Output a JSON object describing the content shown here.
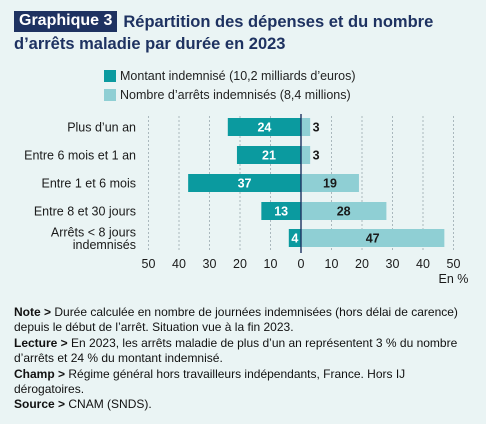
{
  "header": {
    "badge": "Graphique 3",
    "title_line1": "Répartition des dépenses et du nombre",
    "title_line2": "d’arrêts maladie par durée en 2023"
  },
  "colors": {
    "montant": "#0b9a9f",
    "nombre": "#8fcfd4",
    "title": "#1e3261",
    "background": "#eaf4f4"
  },
  "chart_data": {
    "type": "bar",
    "orientation": "horizontal",
    "diverging": true,
    "categories": [
      "Plus d’un an",
      "Entre 6 mois et 1 an",
      "Entre 1 et 6 mois",
      "Entre 8 et 30 jours",
      "Arrêts < 8 jours indemnisés"
    ],
    "category_lines": [
      [
        "Plus d’un an"
      ],
      [
        "Entre 6 mois et 1 an"
      ],
      [
        "Entre 1 et 6 mois"
      ],
      [
        "Entre 8 et 30 jours"
      ],
      [
        "Arrêts < 8 jours",
        "indemnisés"
      ]
    ],
    "series": [
      {
        "name": "Montant indemnisé (10,2 milliards d’euros)",
        "values": [
          24,
          21,
          37,
          13,
          4
        ],
        "side": "left",
        "color": "#0b9a9f"
      },
      {
        "name": "Nombre d’arrêts indemnisés (8,4 millions)",
        "values": [
          3,
          3,
          19,
          28,
          47
        ],
        "side": "right",
        "color": "#8fcfd4"
      }
    ],
    "x_ticks": [
      "50",
      "40",
      "30",
      "20",
      "10",
      "0",
      "10",
      "20",
      "30",
      "40",
      "50"
    ],
    "xlim": [
      -50,
      50
    ],
    "unit_label": "En %",
    "grid": "vertical dashed",
    "legend_position": "top"
  },
  "notes": {
    "note_label": "Note >",
    "note_text": " Durée calculée en nombre de journées indemnisées (hors délai de carence) depuis le début de l’arrêt. Situation vue à la fin 2023.",
    "lecture_label": "Lecture >",
    "lecture_text": " En 2023, les arrêts maladie de plus d’un an représentent 3 % du nombre d’arrêts et 24 % du montant indemnisé.",
    "champ_label": "Champ >",
    "champ_text": " Régime général hors travailleurs indépendants, France. Hors IJ dérogatoires.",
    "source_label": "Source >",
    "source_text": " CNAM (SNDS)."
  }
}
